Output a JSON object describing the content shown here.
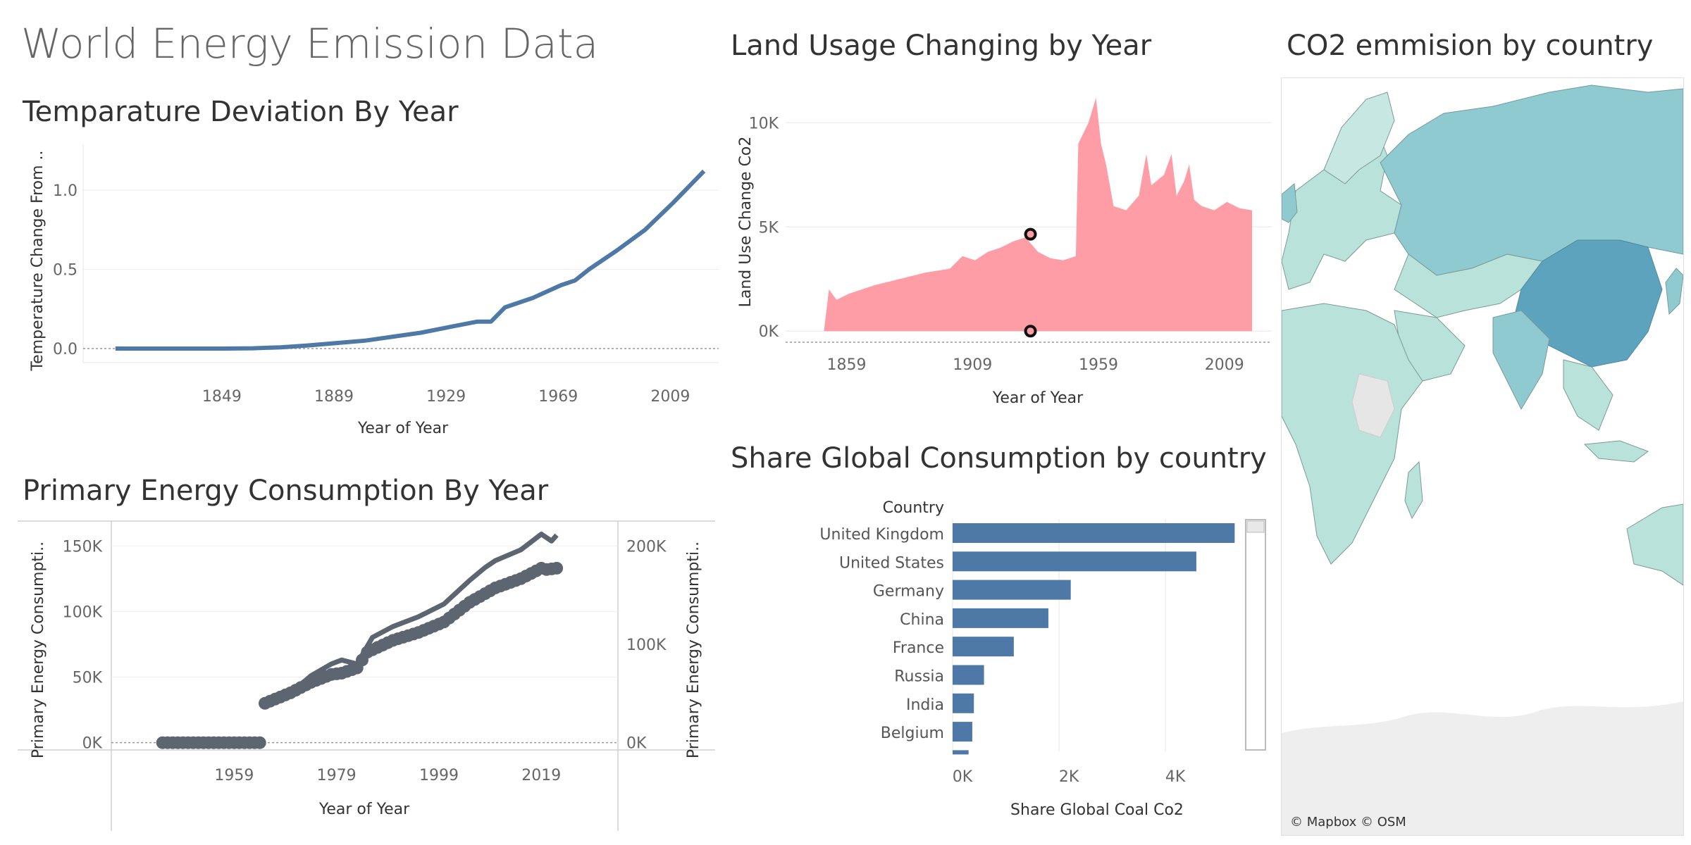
{
  "dashboard": {
    "title": "World Energy Emission Data"
  },
  "colors": {
    "temp_line": "#4e79a7",
    "land_area": "#ff9da7",
    "bar": "#4e79a7",
    "energy_line": "#5c6570",
    "map_land_light": "#b9e2da",
    "map_land_mid": "#8fcad0",
    "map_land_dark": "#5ea3bd",
    "map_nodata": "#e6e6e6"
  },
  "chart_data": [
    {
      "id": "temperature",
      "type": "line",
      "title": "Temparature Deviation By Year",
      "xlabel": "Year of Year",
      "ylabel": "Temperature Change From ..",
      "xlim": [
        1800,
        2025
      ],
      "ylim": [
        0,
        1.2
      ],
      "x_ticks": [
        1849,
        1889,
        1929,
        1969,
        2009
      ],
      "y_ticks": [
        {
          "v": 0,
          "label": "0.0"
        },
        {
          "v": 0.5,
          "label": "0.5"
        },
        {
          "v": 1.0,
          "label": "1.0"
        }
      ],
      "series": [
        {
          "x": [
            1811,
            1830,
            1850,
            1860,
            1870,
            1880,
            1890,
            1900,
            1910,
            1920,
            1930,
            1940,
            1945,
            1950,
            1960,
            1970,
            1975,
            1980,
            1990,
            2000,
            2010,
            2021
          ],
          "values": [
            0,
            0,
            0,
            0.002,
            0.008,
            0.02,
            0.035,
            0.05,
            0.075,
            0.1,
            0.135,
            0.17,
            0.17,
            0.26,
            0.32,
            0.4,
            0.43,
            0.5,
            0.62,
            0.75,
            0.92,
            1.12
          ]
        }
      ]
    },
    {
      "id": "land_use",
      "type": "area",
      "title": "Land Usage Changing by Year",
      "xlabel": "Year of Year",
      "ylabel": "Land Use Change Co2",
      "xlim": [
        1825,
        2025
      ],
      "ylim": [
        -500,
        11500
      ],
      "x_ticks": [
        1859,
        1909,
        1959,
        2009
      ],
      "y_ticks": [
        {
          "v": 0,
          "label": "0K"
        },
        {
          "v": 5000,
          "label": "5K"
        },
        {
          "v": 10000,
          "label": "10K"
        }
      ],
      "x": [
        1850,
        1852,
        1855,
        1860,
        1870,
        1880,
        1890,
        1900,
        1905,
        1910,
        1915,
        1920,
        1925,
        1930,
        1935,
        1940,
        1945,
        1950,
        1951,
        1955,
        1958,
        1960,
        1962,
        1965,
        1970,
        1975,
        1978,
        1980,
        1985,
        1988,
        1990,
        1993,
        1995,
        1997,
        2000,
        2005,
        2010,
        2015,
        2020
      ],
      "values": [
        0,
        2000,
        1500,
        1800,
        2200,
        2500,
        2800,
        3000,
        3600,
        3400,
        3800,
        4000,
        4300,
        4500,
        3800,
        3500,
        3400,
        3600,
        9000,
        10000,
        11200,
        9000,
        8000,
        6000,
        5800,
        6500,
        8500,
        7000,
        7500,
        8500,
        6500,
        7200,
        8000,
        6300,
        6000,
        5800,
        6200,
        5900,
        5800
      ],
      "markers": [
        {
          "x": 1932,
          "y": 4650
        },
        {
          "x": 1932,
          "y": 0
        }
      ]
    },
    {
      "id": "share_coal",
      "type": "bar",
      "orientation": "horizontal",
      "title": "Share Global Consumption by country",
      "category_header": "Country",
      "xlabel": "Share Global Coal Co2",
      "xlim": [
        0,
        5600
      ],
      "x_ticks": [
        {
          "v": 0,
          "label": "0K"
        },
        {
          "v": 2000,
          "label": "2K"
        },
        {
          "v": 4000,
          "label": "4K"
        }
      ],
      "categories": [
        "United Kingdom",
        "United States",
        "Germany",
        "China",
        "France",
        "Russia",
        "India",
        "Belgium"
      ],
      "values": [
        5300,
        4580,
        2220,
        1800,
        1150,
        590,
        400,
        370
      ]
    },
    {
      "id": "primary_energy",
      "type": "line",
      "title": "Primary Energy Consumption By Year",
      "xlabel": "Year of Year",
      "ylabel_left": "Primary Energy Consumpti..",
      "ylabel_right": "Primary Energy Consumpti..",
      "xlim": [
        1935,
        2033
      ],
      "ylim_left": [
        -5000,
        170000
      ],
      "ylim_right": [
        -6666,
        226666
      ],
      "x_ticks": [
        1959,
        1979,
        1999,
        2019
      ],
      "y_ticks_left": [
        {
          "v": 0,
          "label": "0K"
        },
        {
          "v": 50000,
          "label": "50K"
        },
        {
          "v": 100000,
          "label": "100K"
        },
        {
          "v": 150000,
          "label": "150K"
        }
      ],
      "y_ticks_right": [
        {
          "v": 0,
          "label": "0K"
        },
        {
          "v": 100000,
          "label": "100K"
        },
        {
          "v": 200000,
          "label": "200K"
        }
      ],
      "series": [
        {
          "axis": "right",
          "style": "line",
          "x": [
            1965,
            1970,
            1974,
            1978,
            1980,
            1983,
            1986,
            1990,
            1995,
            2000,
            2005,
            2008,
            2010,
            2015,
            2019,
            2021,
            2022
          ],
          "values": [
            37000,
            50000,
            68000,
            80000,
            84000,
            80000,
            107000,
            118000,
            128000,
            141000,
            165000,
            178000,
            185000,
            196000,
            212000,
            205000,
            211000
          ]
        },
        {
          "axis": "left",
          "style": "dots",
          "x": [
            1945,
            1950,
            1955,
            1960,
            1964,
            1965,
            1970,
            1974,
            1978,
            1980,
            1983,
            1985,
            1990,
            1995,
            2000,
            2005,
            2010,
            2015,
            2019,
            2020,
            2022
          ],
          "values": [
            0,
            0,
            0,
            0,
            0,
            30000,
            38000,
            46000,
            52000,
            53000,
            57000,
            69000,
            78000,
            84000,
            92000,
            107000,
            118000,
            125000,
            133000,
            132000,
            133000
          ]
        }
      ]
    }
  ],
  "map": {
    "title": "CO2 emmision by country",
    "credit": "© Mapbox © OSM"
  }
}
